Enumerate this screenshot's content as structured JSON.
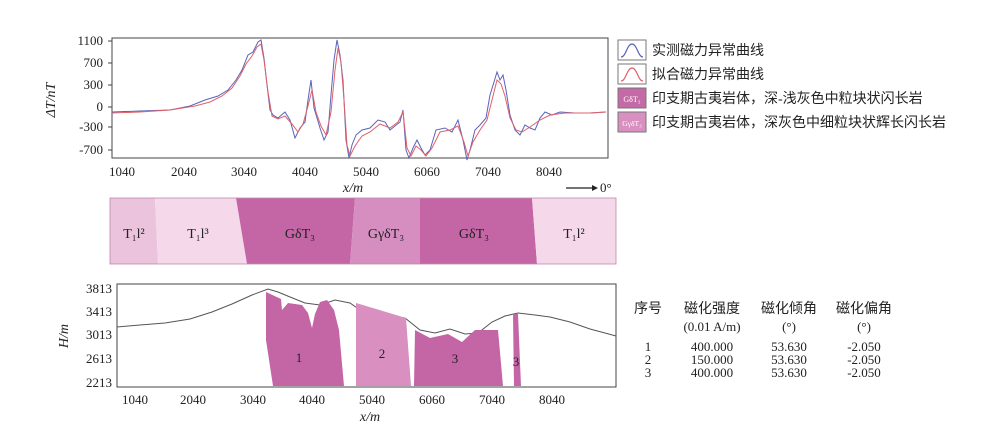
{
  "profile": {
    "ylabel": "ΔT/nT",
    "xlabel": "x/m",
    "x_ticks": [
      "1040",
      "2040",
      "3040",
      "4040",
      "5040",
      "6060",
      "7040",
      "8040"
    ],
    "y_ticks": [
      "1100",
      "700",
      "300",
      "0",
      "-300",
      "-700"
    ],
    "colors": {
      "measured": "#5a63b8",
      "fitted": "#e0606a"
    }
  },
  "legend": [
    {
      "swatch": "",
      "label": "实测磁力异常曲线",
      "icon": "measured-line-icon"
    },
    {
      "swatch": "",
      "label": "拟合磁力异常曲线",
      "icon": "fitted-line-icon"
    },
    {
      "swatch": "GδT₃",
      "label": "印支期古夷岩体，深-浅灰色中粒块状闪长岩",
      "color": "#c46aa6"
    },
    {
      "swatch": "GγδT₃",
      "label": "印支期古夷岩体，深灰色中细粒块状辉长闪长岩",
      "color": "#d98fc0"
    }
  ],
  "compass": {
    "label": "0°"
  },
  "strat": {
    "units": [
      {
        "label": "T₁l²",
        "color": "#ecc3dd"
      },
      {
        "label": "T₁l³",
        "color": "#f5d9ea"
      },
      {
        "label": "GδT₃",
        "color": "#c465a6"
      },
      {
        "label": "GγδT₃",
        "color": "#d68ec1"
      },
      {
        "label": "GδT₃",
        "color": "#c465a6"
      },
      {
        "label": "T₁l²",
        "color": "#f5d9ea"
      }
    ]
  },
  "model": {
    "ylabel": "H/m",
    "xlabel": "x/m",
    "y_ticks": [
      "3813",
      "3413",
      "3013",
      "2613",
      "2213"
    ],
    "x_ticks": [
      "1040",
      "2040",
      "3040",
      "4040",
      "5040",
      "6060",
      "7040",
      "8040"
    ],
    "bodies": [
      {
        "label": "1",
        "color": "#c465a6"
      },
      {
        "label": "2",
        "color": "#d98fc0"
      },
      {
        "label": "3",
        "color": "#c465a6"
      },
      {
        "label": "3",
        "color": "#c465a6"
      }
    ]
  },
  "table": {
    "headers": [
      "序号",
      "磁化强度",
      "磁化倾角",
      "磁化偏角"
    ],
    "subheaders": [
      "",
      "(0.01 A/m)",
      "(°)",
      "(°)"
    ],
    "rows": [
      [
        "1",
        "400.000",
        "53.630",
        "-2.050"
      ],
      [
        "2",
        "150.000",
        "53.630",
        "-2.050"
      ],
      [
        "3",
        "400.000",
        "53.630",
        "-2.050"
      ]
    ]
  }
}
